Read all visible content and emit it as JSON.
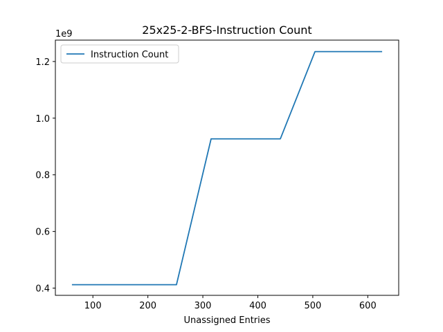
{
  "chart_data": {
    "type": "line",
    "title": "25x25-2-BFS-Instruction Count",
    "xlabel": "Unassigned Entries",
    "ylabel": "",
    "y_scale_label": "1e9",
    "xlim": [
      31.75,
      656.25
    ],
    "ylim": [
      0.3745,
      1.2755
    ],
    "x_ticks": [
      100,
      200,
      300,
      400,
      500,
      600
    ],
    "y_ticks": [
      0.4,
      0.6,
      0.8,
      1.0,
      1.2
    ],
    "x_tick_labels": [
      "100",
      "200",
      "300",
      "400",
      "500",
      "600"
    ],
    "y_tick_labels": [
      "0.4",
      "0.6",
      "0.8",
      "1.0",
      "1.2"
    ],
    "grid": false,
    "legend_position": "upper-left",
    "series": [
      {
        "name": "Instruction Count",
        "color": "#1f77b4",
        "x": [
          63,
          125,
          188,
          252,
          315,
          378,
          441,
          504,
          567,
          625
        ],
        "y": [
          0.412,
          0.412,
          0.412,
          0.412,
          0.927,
          0.927,
          0.927,
          1.235,
          1.235,
          1.235
        ]
      }
    ]
  }
}
